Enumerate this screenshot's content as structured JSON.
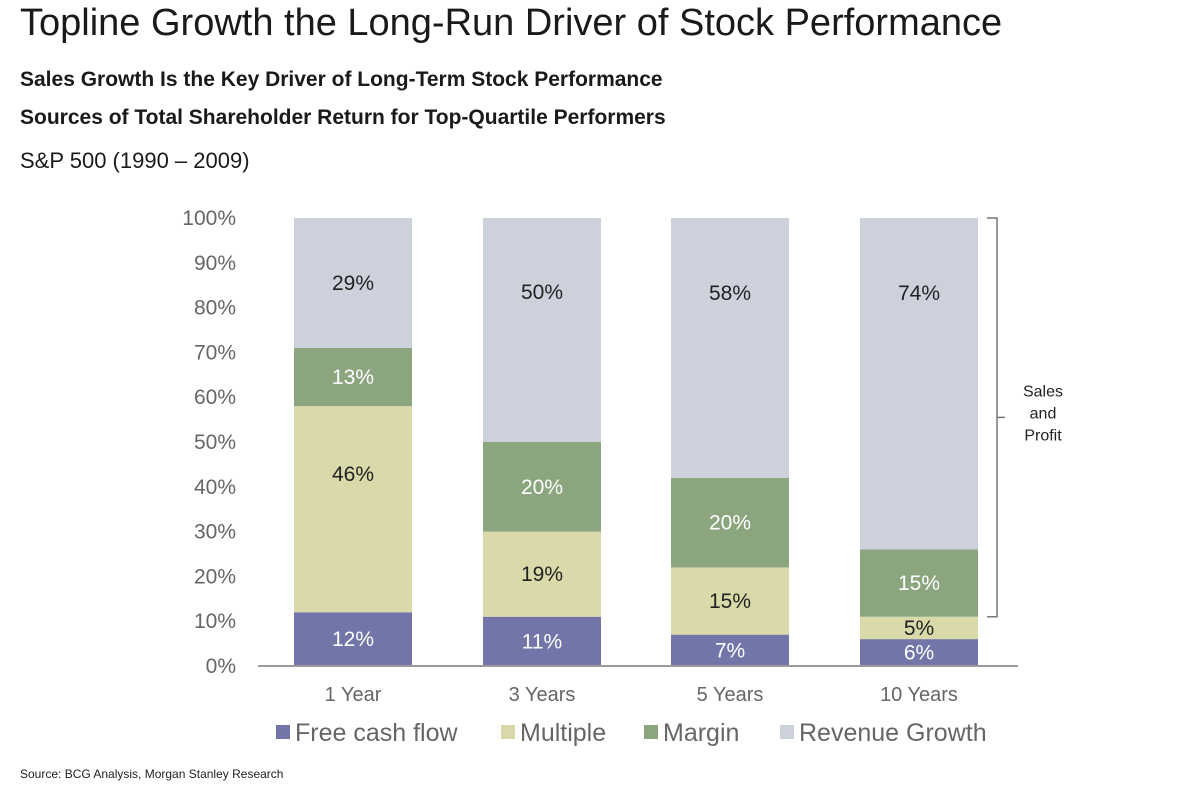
{
  "page": {
    "title": "Topline Growth the Long-Run Driver of Stock Performance",
    "subtitle_1": "Sales Growth Is the Key Driver of Long-Term Stock Performance",
    "subtitle_2": "Sources of Total Shareholder Return for Top-Quartile Performers",
    "index_label": "S&P 500 (1990 – 2009)",
    "source": "Source: BCG Analysis, Morgan Stanley Research"
  },
  "chart_data": {
    "type": "bar",
    "stacked": true,
    "categories": [
      "1 Year",
      "3 Years",
      "5 Years",
      "10 Years"
    ],
    "series": [
      {
        "name": "Free cash flow",
        "color": "#7275a8",
        "values": [
          12,
          11,
          7,
          6
        ],
        "labels": [
          "12%",
          "11%",
          "7%",
          "6%"
        ],
        "label_color": "#ffffff"
      },
      {
        "name": "Multiple",
        "color": "#d9d9a9",
        "values": [
          46,
          19,
          15,
          5
        ],
        "labels": [
          "46%",
          "19%",
          "15%",
          "5%"
        ],
        "label_color": "#222222"
      },
      {
        "name": "Margin",
        "color": "#8ba57f",
        "values": [
          13,
          20,
          20,
          15
        ],
        "labels": [
          "13%",
          "20%",
          "20%",
          "15%"
        ],
        "label_color": "#ffffff"
      },
      {
        "name": "Revenue Growth",
        "color": "#ccd1dc",
        "values": [
          29,
          50,
          58,
          74
        ],
        "labels": [
          "29%",
          "50%",
          "58%",
          "74%"
        ],
        "label_color": "#222222"
      }
    ],
    "y_ticks": [
      "0%",
      "10%",
      "20%",
      "30%",
      "40%",
      "50%",
      "60%",
      "70%",
      "80%",
      "90%",
      "100%"
    ],
    "ylim": [
      0,
      100
    ],
    "grid": false,
    "legend_placement": "bottom",
    "annotation": {
      "lines": [
        "Sales",
        "and",
        "Profit"
      ],
      "span": [
        11,
        100
      ]
    }
  }
}
